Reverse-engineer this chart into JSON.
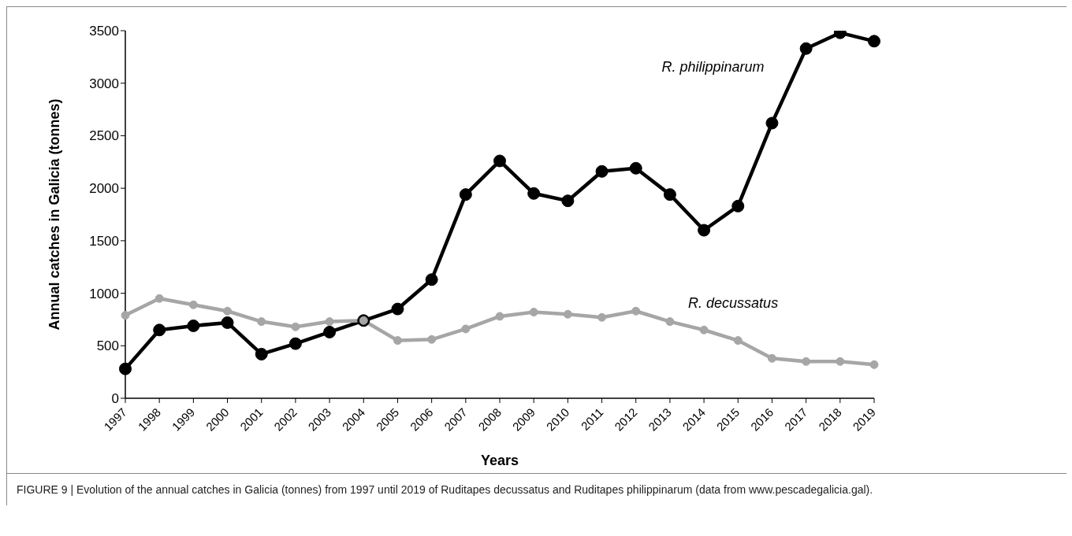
{
  "chart_data": {
    "type": "line",
    "xlabel": "Years",
    "ylabel": "Annual catches in Galicia (tonnes)",
    "categories": [
      "1997",
      "1998",
      "1999",
      "2000",
      "2001",
      "2002",
      "2003",
      "2004",
      "2005",
      "2006",
      "2007",
      "2008",
      "2009",
      "2010",
      "2011",
      "2012",
      "2013",
      "2014",
      "2015",
      "2016",
      "2017",
      "2018",
      "2019"
    ],
    "series": [
      {
        "name": "R. philippinarum",
        "color": "#000000",
        "values": [
          280,
          650,
          690,
          720,
          420,
          520,
          630,
          740,
          850,
          1130,
          1940,
          2260,
          1950,
          1880,
          2160,
          2190,
          1940,
          1600,
          1830,
          2620,
          3330,
          3480,
          3400
        ]
      },
      {
        "name": "R. decussatus",
        "color": "#a6a6a6",
        "values": [
          790,
          950,
          890,
          830,
          730,
          680,
          730,
          740,
          550,
          560,
          660,
          780,
          820,
          800,
          770,
          830,
          730,
          650,
          550,
          380,
          350,
          350,
          320
        ]
      }
    ],
    "ylim": [
      0,
      3500
    ],
    "yticks": [
      0,
      500,
      1000,
      1500,
      2000,
      2500,
      3000,
      3500
    ],
    "grid": false,
    "legend": false,
    "marker": "circle",
    "line_style": "solid",
    "annotations": [
      "FIGURE 9 | Evolution of the annual catches in Galicia (tonnes) from 1997 until 2019 of Ruditapes decussatus and Ruditapes philippinarum (data from www.pescadegalicia.gal)."
    ]
  }
}
